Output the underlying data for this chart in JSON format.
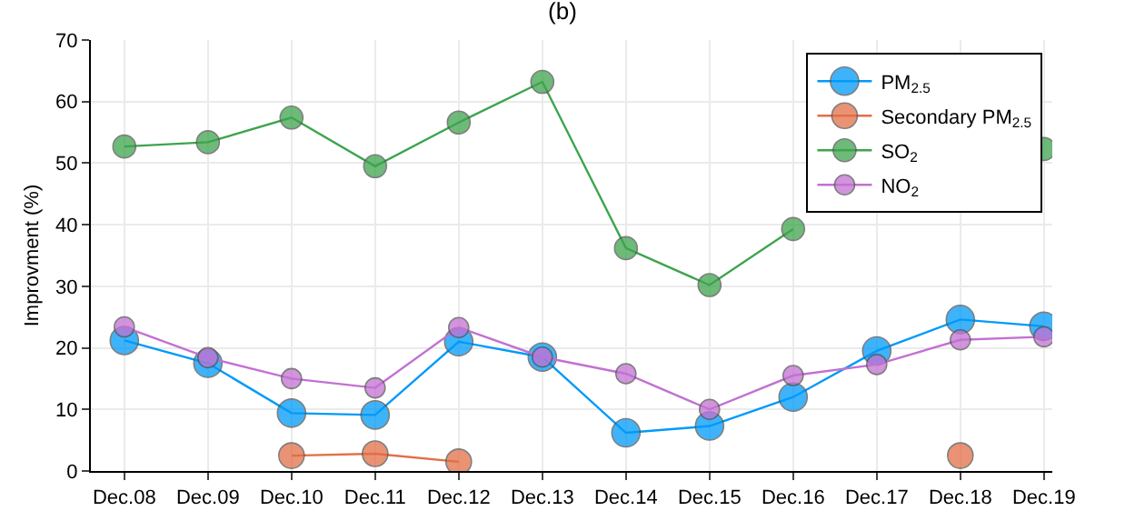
{
  "chart_data": {
    "type": "line",
    "title": "(b)",
    "ylabel": "Improvment (%)",
    "categories": [
      "Dec.08",
      "Dec.09",
      "Dec.10",
      "Dec.11",
      "Dec.12",
      "Dec.13",
      "Dec.14",
      "Dec.15",
      "Dec.16",
      "Dec.17",
      "Dec.18",
      "Dec.19"
    ],
    "series": [
      {
        "name": "PM$_{2.5}$",
        "color": "#009af9",
        "values": [
          21.2,
          17.5,
          9.4,
          9.1,
          21.0,
          18.5,
          6.2,
          7.3,
          12.0,
          19.5,
          24.6,
          23.5
        ]
      },
      {
        "name": "Secondary PM$_{2.5}$",
        "color": "#e26f46",
        "values": [
          null,
          null,
          2.5,
          2.8,
          1.5,
          null,
          null,
          null,
          null,
          null,
          2.5,
          null
        ]
      },
      {
        "name": "SO$_{2}$",
        "color": "#3da44d",
        "values": [
          52.7,
          53.4,
          57.4,
          49.5,
          56.6,
          63.2,
          36.2,
          30.2,
          39.3,
          null,
          null,
          52.3
        ]
      },
      {
        "name": "NO$_{2}$",
        "color": "#c271d2",
        "values": [
          23.4,
          18.4,
          15.0,
          13.5,
          23.3,
          18.5,
          15.8,
          10.0,
          15.5,
          17.3,
          21.3,
          21.8
        ]
      }
    ],
    "ylim": [
      0,
      70
    ],
    "yticks": [
      0,
      10,
      20,
      30,
      40,
      50,
      60,
      70
    ],
    "grid": true,
    "legend": "top right",
    "marker": "circle",
    "line_style": "solid"
  }
}
